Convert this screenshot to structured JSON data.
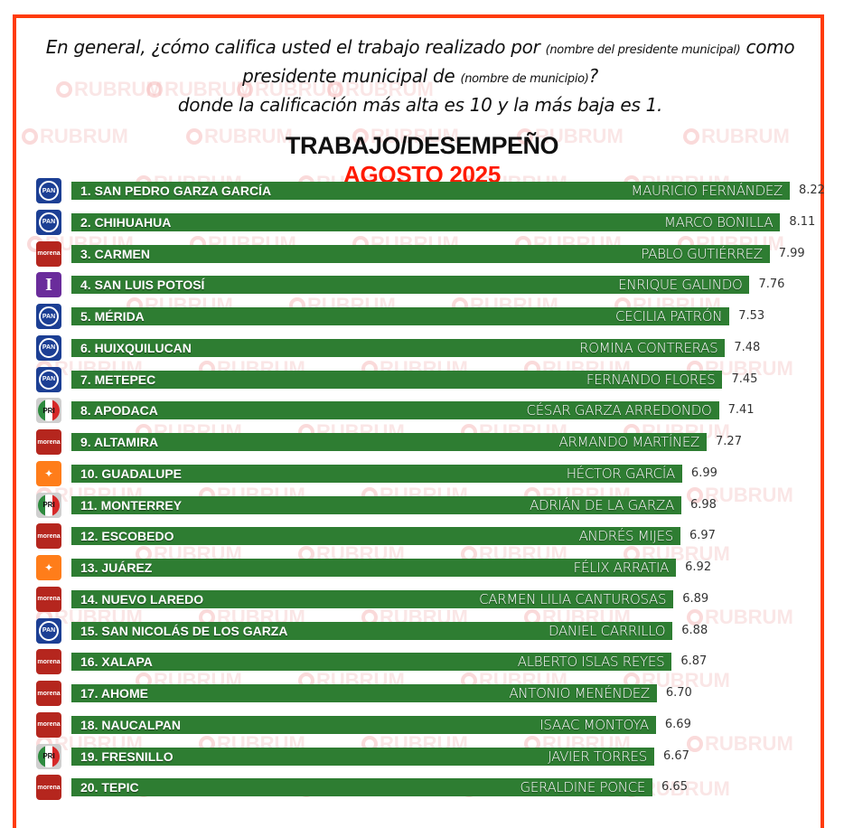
{
  "header": {
    "question_part1": "En general, ¿cómo califica usted el trabajo realizado por",
    "question_note1": "(nombre del presidente municipal)",
    "question_part2": "como presidente municipal de",
    "question_note2": "(nombre de municipio)",
    "question_part3": "?",
    "question_part4": "donde la calificación más alta es 10 y la más baja es 1.",
    "title": "TRABAJO/DESEMPEÑO",
    "subtitle": "AGOSTO 2025"
  },
  "watermark": {
    "text": "RUBRUM"
  },
  "colors": {
    "frame": "#ff3b0a",
    "bar": "#2e7d32",
    "subtitle": "#ff1a00"
  },
  "chart_data": {
    "type": "bar",
    "orientation": "horizontal",
    "title": "TRABAJO/DESEMPEÑO",
    "subtitle": "AGOSTO 2025",
    "xlabel": "",
    "ylabel": "",
    "categories": [
      "1. SAN PEDRO GARZA GARCÍA",
      "2. CHIHUAHUA",
      "3. CARMEN",
      "4. SAN LUIS POTOSÍ",
      "5. MÉRIDA",
      "6. HUIXQUILUCAN",
      "7. METEPEC",
      "8. APODACA",
      "9. ALTAMIRA",
      "10. GUADALUPE",
      "11. MONTERREY",
      "12. ESCOBEDO",
      "13. JUÁREZ",
      "14. NUEVO LAREDO",
      "15. SAN NICOLÁS DE LOS GARZA",
      "16. XALAPA",
      "17. AHOME",
      "18. NAUCALPAN",
      "19. FRESNILLO",
      "20. TEPIC"
    ],
    "values": [
      8.22,
      8.11,
      7.99,
      7.76,
      7.53,
      7.48,
      7.45,
      7.41,
      7.27,
      6.99,
      6.98,
      6.97,
      6.92,
      6.89,
      6.88,
      6.87,
      6.7,
      6.69,
      6.67,
      6.65
    ],
    "mayors": [
      "MAURICIO FERNÁNDEZ",
      "MARCO BONILLA",
      "PABLO GUTIÉRREZ",
      "ENRIQUE GALINDO",
      "CECILIA PATRÓN",
      "ROMINA CONTRERAS",
      "FERNANDO FLORES",
      "CÉSAR GARZA ARREDONDO",
      "ARMANDO MARTÍNEZ",
      "HÉCTOR GARCÍA",
      "ADRIÁN DE LA GARZA",
      "ANDRÉS MIJES",
      "FÉLIX ARRATIA",
      "CARMEN LILIA CANTUROSAS",
      "DANIEL CARRILLO",
      "ALBERTO ISLAS REYES",
      "ANTONIO MENÉNDEZ",
      "ISAAC MONTOYA",
      "JAVIER TORRES",
      "GERALDINE PONCE"
    ],
    "parties": [
      "PAN",
      "PAN",
      "MORENA",
      "INDEPENDIENTE",
      "PAN",
      "PAN",
      "PAN",
      "PRI",
      "MORENA",
      "MC",
      "PRI",
      "MORENA",
      "MC",
      "MORENA",
      "PAN",
      "MORENA",
      "MORENA",
      "MORENA",
      "PRI",
      "MORENA"
    ],
    "data_labels": [
      "8.22",
      "8.11",
      "7.99",
      "7.76",
      "7.53",
      "7.48",
      "7.45",
      "7.41",
      "7.27",
      "6.99",
      "6.98",
      "6.97",
      "6.92",
      "6.89",
      "6.88",
      "6.87",
      "6.70",
      "6.69",
      "6.67",
      "6.65"
    ],
    "xlim": [
      1,
      10
    ],
    "grid": false,
    "legend": "none"
  },
  "party_logos": {
    "PAN": "PAN",
    "MORENA": "morena",
    "INDEPENDIENTE": "I",
    "PRI": "PRI",
    "MC": "✦"
  }
}
